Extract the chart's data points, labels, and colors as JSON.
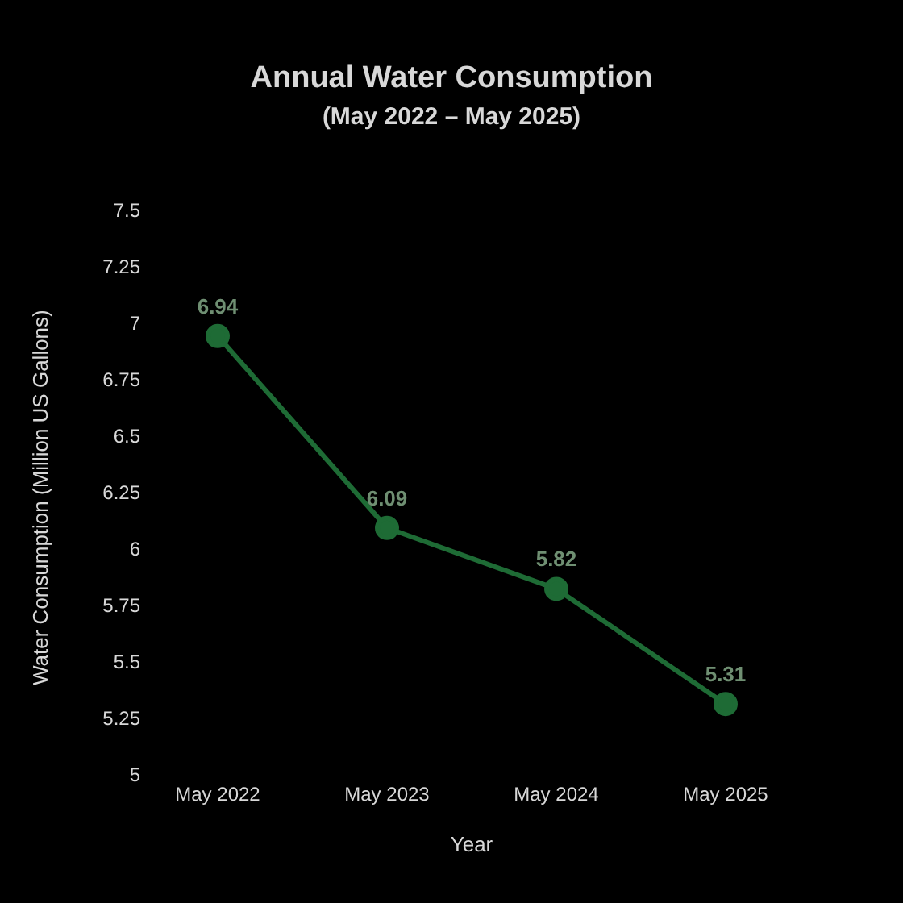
{
  "chart_data": {
    "type": "line",
    "title": "Annual Water Consumption",
    "subtitle": "(May 2022 – May 2025)",
    "xlabel": "Year",
    "ylabel": "Water Consumption (Million US Gallons)",
    "categories": [
      "May 2022",
      "May 2023",
      "May 2024",
      "May 2025"
    ],
    "series": [
      {
        "color": "#1e6b35",
        "values": [
          6.94,
          6.09,
          5.82,
          5.31
        ]
      }
    ],
    "ylim": [
      5,
      7.5
    ],
    "yticks": [
      5,
      5.25,
      5.5,
      5.75,
      6,
      6.25,
      6.5,
      6.75,
      7,
      7.25,
      7.5
    ],
    "marker": "circle",
    "line_style": "solid",
    "data_labels": true
  }
}
